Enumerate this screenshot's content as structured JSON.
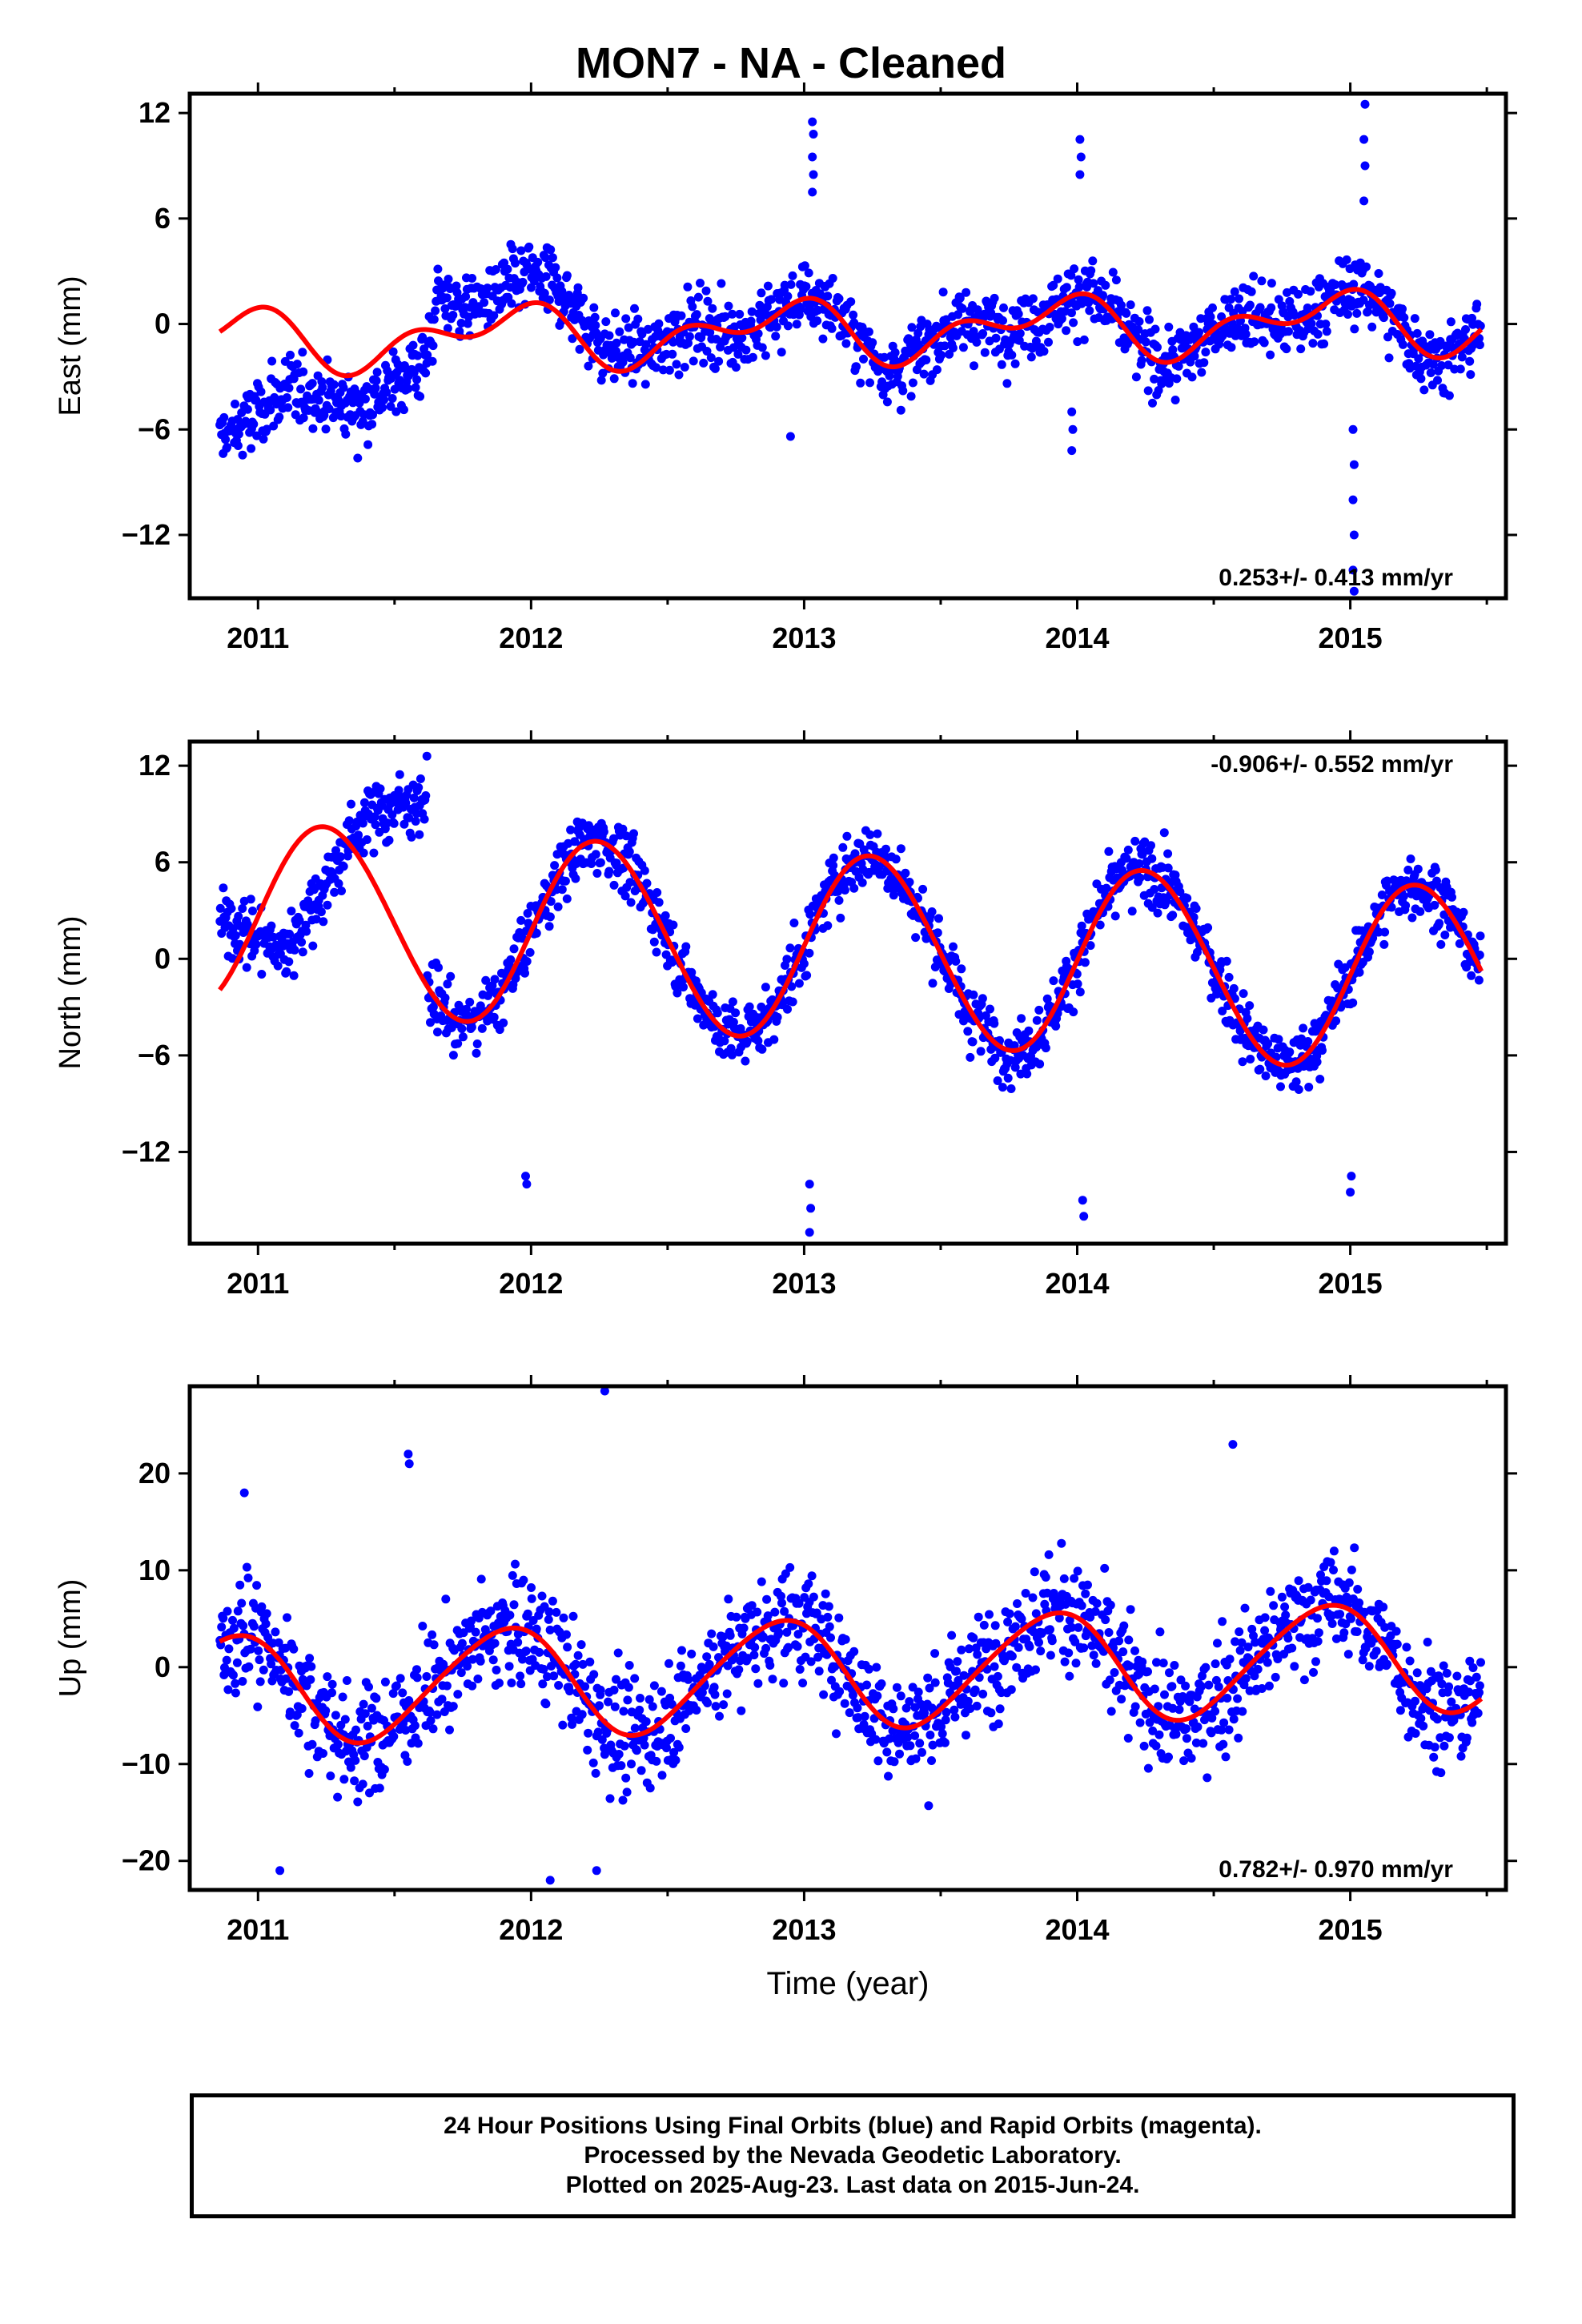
{
  "title": "MON7  - NA - Cleaned",
  "colors": {
    "data": "#0000ff",
    "model": "#ff0000",
    "axis": "#000000"
  },
  "footer": {
    "line1": "24 Hour Positions Using Final Orbits (blue) and Rapid Orbits (magenta).",
    "line2": "Processed by the Nevada Geodetic Laboratory.",
    "line3": "Plotted on 2025-Aug-23. Last data on 2015-Jun-24."
  },
  "chart_data": [
    {
      "type": "scatter",
      "name": "east",
      "ylabel": "East (mm)",
      "xlabel": "",
      "xlim": [
        2010.75,
        2015.57
      ],
      "ylim": [
        -15.6,
        13.1
      ],
      "xticks": [
        2011,
        2012,
        2013,
        2014,
        2015
      ],
      "yticks": [
        -12,
        -6,
        0,
        6,
        12
      ],
      "rate_label": "0.253+/- 0.413 mm/yr",
      "rate_position": "bottom-right",
      "data_range": [
        2010.86,
        2015.48
      ],
      "model": {
        "offset": -0.4,
        "trend": 0.253,
        "annual_amp": 1.3,
        "annual_phase": 2.2,
        "semiannual_amp": 1.0,
        "semiannual_phase": 0.9,
        "steps": [
          [
            2011.65,
            2.4
          ]
        ]
      },
      "trend_segments": [
        {
          "x": [
            2010.86,
            2011.3,
            2011.62
          ],
          "y": [
            -5.6,
            -4.0,
            -3.0
          ]
        },
        {
          "x": [
            2011.65,
            2012.4,
            2012.45,
            2015.48
          ],
          "y": [
            2.5,
            1.5,
            -1.8,
            0.0
          ]
        }
      ],
      "outliers": [
        {
          "x": 2013.03,
          "y": [
            7.5,
            8.5,
            9.5,
            10.8,
            11.5
          ]
        },
        {
          "x": 2014.01,
          "y": [
            8.5,
            9.5,
            10.5
          ]
        },
        {
          "x": 2013.98,
          "y": [
            -5.0,
            -6.0,
            -7.2
          ]
        },
        {
          "x": 2015.05,
          "y": [
            7.0,
            9.0,
            10.5,
            12.5
          ]
        },
        {
          "x": 2015.01,
          "y": [
            -6.0,
            -8.0,
            -10.0,
            -12.0,
            -14.0,
            -15.2
          ]
        },
        {
          "x": 2012.95,
          "y": [
            -6.4
          ]
        }
      ]
    },
    {
      "type": "scatter",
      "name": "north",
      "ylabel": "North (mm)",
      "xlabel": "",
      "xlim": [
        2010.75,
        2015.57
      ],
      "ylim": [
        -17.7,
        13.5
      ],
      "xticks": [
        2011,
        2012,
        2013,
        2014,
        2015
      ],
      "yticks": [
        -12,
        -6,
        0,
        6,
        12
      ],
      "rate_label": "-0.906+/- 0.552 mm/yr",
      "rate_position": "top-right",
      "data_range": [
        2010.86,
        2015.48
      ],
      "model": {
        "offset": 0.8,
        "trend": -0.906,
        "annual_amp": 5.8,
        "annual_phase": 0.0,
        "semiannual_amp": 0.2,
        "semiannual_phase": 0.0,
        "steps": []
      },
      "trend_segments": [
        {
          "x": [
            2010.86,
            2011.1,
            2011.4,
            2011.62
          ],
          "y": [
            2.5,
            0.5,
            9.0,
            10.0
          ]
        },
        {
          "x": [
            2011.65,
            2015.48
          ],
          "y": [
            -1.0,
            -1.0
          ]
        }
      ],
      "outliers": [
        {
          "x": 2011.98,
          "y": [
            -13.5,
            -14.0
          ]
        },
        {
          "x": 2013.02,
          "y": [
            -14.0,
            -15.5,
            -17.0
          ]
        },
        {
          "x": 2014.02,
          "y": [
            -15.0,
            -16.0
          ]
        },
        {
          "x": 2015.0,
          "y": [
            -14.5,
            -13.5
          ]
        }
      ]
    },
    {
      "type": "scatter",
      "name": "up",
      "ylabel": "Up (mm)",
      "xlabel": "Time (year)",
      "xlim": [
        2010.75,
        2015.57
      ],
      "ylim": [
        -23.0,
        29.0
      ],
      "xticks": [
        2011,
        2012,
        2013,
        2014,
        2015
      ],
      "yticks": [
        -20,
        -10,
        0,
        10,
        20
      ],
      "rate_label": "0.782+/- 0.970 mm/yr",
      "rate_position": "bottom-right",
      "data_range": [
        2010.86,
        2015.48
      ],
      "model": {
        "offset": -0.7,
        "trend": 0.782,
        "annual_amp": 5.6,
        "annual_phase": 2.2,
        "semiannual_amp": 0.6,
        "semiannual_phase": 1.0,
        "steps": []
      },
      "outliers": [
        {
          "x": 2012.27,
          "y": [
            28.5
          ]
        },
        {
          "x": 2011.55,
          "y": [
            22.0,
            21.0
          ]
        },
        {
          "x": 2014.57,
          "y": [
            23.0
          ]
        },
        {
          "x": 2011.08,
          "y": [
            -21.0
          ]
        },
        {
          "x": 2012.07,
          "y": [
            -22.0
          ]
        },
        {
          "x": 2012.24,
          "y": [
            -21.0
          ]
        },
        {
          "x": 2010.95,
          "y": [
            18.0
          ]
        }
      ]
    }
  ]
}
